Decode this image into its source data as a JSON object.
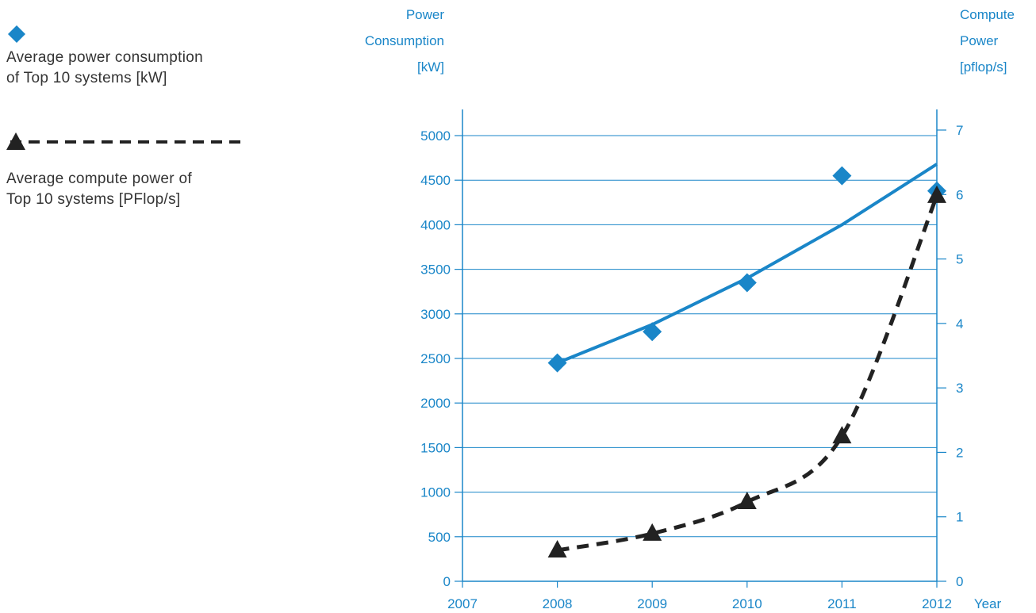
{
  "legend": {
    "power_line1": "Average power consumption",
    "power_line2": "of Top 10 systems [kW]",
    "compute_line1": "Average compute power of",
    "compute_line2": "Top 10 systems [PFlop/s]"
  },
  "chart_data": {
    "type": "line",
    "x_label": "Year",
    "left_axis_title": [
      "Power",
      "Consumption",
      "[kW]"
    ],
    "right_axis_title": [
      "Compute",
      "Power",
      "[pflop/s]"
    ],
    "xlim": [
      2007,
      2012
    ],
    "x_ticks": [
      2007,
      2008,
      2009,
      2010,
      2011,
      2012
    ],
    "left_ylim": [
      0,
      5000
    ],
    "left_ticks": [
      0,
      500,
      1000,
      1500,
      2000,
      2500,
      3000,
      3500,
      4000,
      4500,
      5000
    ],
    "right_ylim": [
      0,
      7
    ],
    "right_ticks": [
      0,
      1,
      2,
      3,
      4,
      5,
      6,
      7
    ],
    "grid": true,
    "series": [
      {
        "axis": "left",
        "marker": "diamond",
        "color": "#1a86c8",
        "points": [
          {
            "x": 2008,
            "y": 2450
          },
          {
            "x": 2009,
            "y": 2800
          },
          {
            "x": 2010,
            "y": 3350
          },
          {
            "x": 2011,
            "y": 4550
          },
          {
            "x": 2012,
            "y": 4380
          }
        ],
        "trend_points": [
          {
            "x": 2008,
            "y": 2450
          },
          {
            "x": 2009,
            "y": 2880
          },
          {
            "x": 2010,
            "y": 3400
          },
          {
            "x": 2011,
            "y": 4000
          },
          {
            "x": 2012,
            "y": 4680
          }
        ]
      },
      {
        "axis": "right",
        "marker": "triangle",
        "color": "#222222",
        "points": [
          {
            "x": 2008,
            "y": 0.48
          },
          {
            "x": 2009,
            "y": 0.74
          },
          {
            "x": 2010,
            "y": 1.23
          },
          {
            "x": 2011,
            "y": 2.25
          },
          {
            "x": 2012,
            "y": 5.98
          }
        ]
      }
    ]
  }
}
